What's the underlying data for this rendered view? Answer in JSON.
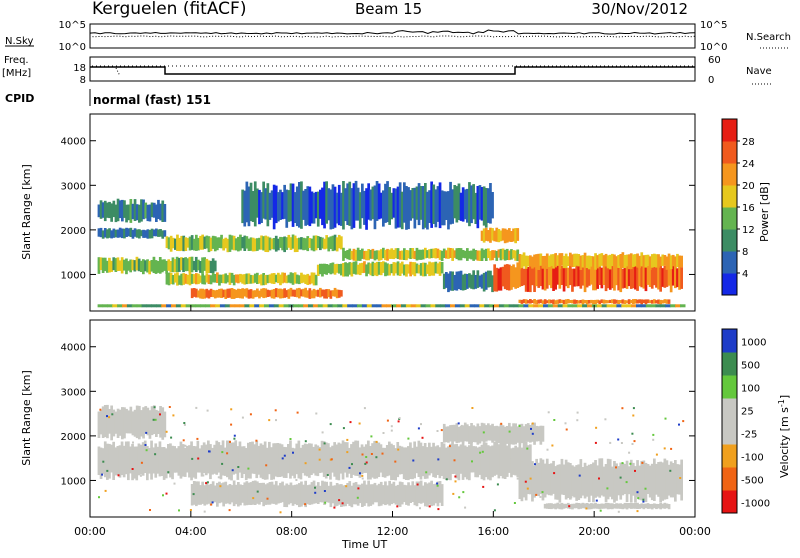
{
  "header": {
    "station": "Kerguelen (fitACF)",
    "beam": "Beam 15",
    "date": "30/Nov/2012"
  },
  "scan_panels": {
    "nsky": {
      "label": "N.Sky",
      "right_label": "N.Search",
      "left_ticks": [
        "10^5",
        "10^0"
      ],
      "right_ticks": [
        "10^5",
        "10^0"
      ]
    },
    "freq": {
      "label_line1": "Freq.",
      "label_line2": "[MHz]",
      "right_label": "Nave",
      "left_ticks": [
        "18",
        "8"
      ],
      "right_ticks": [
        "60",
        "0"
      ]
    },
    "cpid": {
      "label": "CPID",
      "value": "normal (fast) 151"
    }
  },
  "chart_data": [
    {
      "type": "heatmap",
      "name": "power",
      "ylabel": "Slant Range [km]",
      "xlabel": "",
      "ylim": [
        180,
        4600
      ],
      "xlim_hours": [
        0,
        24
      ],
      "y_ticks": [
        "1000",
        "2000",
        "3000",
        "4000"
      ],
      "colorbar": {
        "label": "Power [dB]",
        "range": [
          0,
          32
        ],
        "ticks": [
          "4",
          "8",
          "12",
          "16",
          "20",
          "24",
          "28"
        ],
        "colors": [
          "#1428e6",
          "#2c64b4",
          "#3c8c64",
          "#64b450",
          "#e6c81e",
          "#f5961e",
          "#f05a1e",
          "#e61e14"
        ]
      },
      "echo_regions": [
        {
          "t_start": 0.3,
          "t_end": 3.0,
          "r_low": 2150,
          "r_high": 2700,
          "db": 9
        },
        {
          "t_start": 0.3,
          "t_end": 3.0,
          "r_low": 1800,
          "r_high": 2050,
          "db": 8
        },
        {
          "t_start": 3.0,
          "t_end": 10.0,
          "r_low": 1500,
          "r_high": 1900,
          "db": 15
        },
        {
          "t_start": 10.0,
          "t_end": 17.0,
          "r_low": 1300,
          "r_high": 1600,
          "db": 17
        },
        {
          "t_start": 15.5,
          "t_end": 17.0,
          "r_low": 1700,
          "r_high": 2050,
          "db": 20
        },
        {
          "t_start": 0.3,
          "t_end": 5.0,
          "r_low": 1000,
          "r_high": 1400,
          "db": 14
        },
        {
          "t_start": 3.0,
          "t_end": 9.0,
          "r_low": 750,
          "r_high": 1050,
          "db": 17
        },
        {
          "t_start": 4.0,
          "t_end": 10.0,
          "r_low": 450,
          "r_high": 700,
          "db": 24
        },
        {
          "t_start": 9.0,
          "t_end": 14.0,
          "r_low": 950,
          "r_high": 1300,
          "db": 17
        },
        {
          "t_start": 14.0,
          "t_end": 16.0,
          "r_low": 600,
          "r_high": 1100,
          "db": 8
        },
        {
          "t_start": 16.0,
          "t_end": 23.5,
          "r_low": 600,
          "r_high": 1300,
          "db": 26
        },
        {
          "t_start": 17.0,
          "t_end": 23.5,
          "r_low": 1100,
          "r_high": 1500,
          "db": 20
        },
        {
          "t_start": 17.0,
          "t_end": 23.0,
          "r_low": 330,
          "r_high": 450,
          "db": 24
        },
        {
          "t_start": 6.0,
          "t_end": 16.0,
          "r_low": 2000,
          "r_high": 3100,
          "db": 6
        }
      ]
    },
    {
      "type": "heatmap",
      "name": "velocity",
      "ylabel": "Slant Range [km]",
      "xlabel": "Time UT",
      "ylim": [
        180,
        4600
      ],
      "xlim_hours": [
        0,
        24
      ],
      "y_ticks": [
        "1000",
        "2000",
        "3000",
        "4000"
      ],
      "x_ticks": [
        "00:00",
        "04:00",
        "08:00",
        "12:00",
        "16:00",
        "20:00",
        "00:00"
      ],
      "colorbar": {
        "label_main": "Velocity",
        "label_unit": "[m s",
        "label_sup": "-1",
        "label_end": "]",
        "ticks": [
          "1000",
          "500",
          "100",
          "25",
          "-25",
          "-100",
          "-500",
          "-1000"
        ],
        "colors": [
          "#1e3cc8",
          "#3c8c50",
          "#64c83c",
          "#c8c8c3",
          "#c8c8c3",
          "#f0a01e",
          "#f06414",
          "#e61414"
        ]
      },
      "ground_scatter_color": "#c8c8c3",
      "echo_regions": [
        {
          "t_start": 0.3,
          "t_end": 17.5,
          "r_low": 1000,
          "r_high": 1900
        },
        {
          "t_start": 0.3,
          "t_end": 3.0,
          "r_low": 1900,
          "r_high": 2700
        },
        {
          "t_start": 4.0,
          "t_end": 14.0,
          "r_low": 400,
          "r_high": 1000
        },
        {
          "t_start": 17.0,
          "t_end": 23.5,
          "r_low": 500,
          "r_high": 1500
        },
        {
          "t_start": 14.0,
          "t_end": 18.0,
          "r_low": 1800,
          "r_high": 2300
        },
        {
          "t_start": 18.0,
          "t_end": 23.0,
          "r_low": 350,
          "r_high": 500
        }
      ]
    }
  ]
}
